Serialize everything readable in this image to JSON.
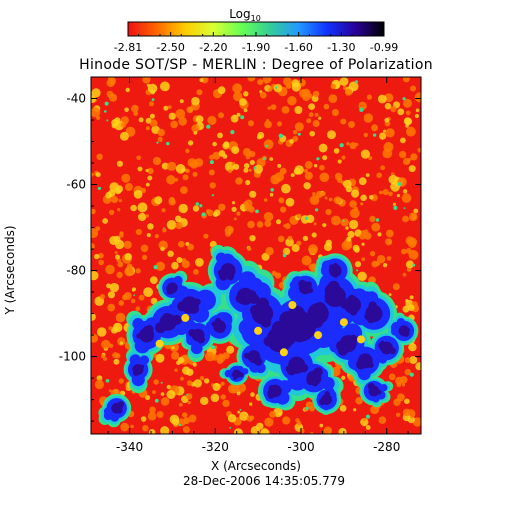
{
  "figure": {
    "title": "Hinode SOT/SP - MERLIN : Degree of Polarization",
    "timestamp": "28-Dec-2006 14:35:05.779",
    "colorbar": {
      "label_base": "Log",
      "label_sub": "10",
      "ticks": [
        "-2.81",
        "-2.50",
        "-2.20",
        "-1.90",
        "-1.60",
        "-1.30",
        "-0.99"
      ],
      "stops": [
        "#ee1111",
        "#ff6600",
        "#ffcc00",
        "#d9ff33",
        "#66ff55",
        "#33cc99",
        "#2299ff",
        "#1133ff",
        "#2a0099",
        "#000000"
      ]
    },
    "x_axis": {
      "label": "X (Arcseconds)",
      "ticks": [
        "-340",
        "-320",
        "-300",
        "-280"
      ],
      "range": [
        -349,
        -272
      ]
    },
    "y_axis": {
      "label": "Y (Arcseconds)",
      "ticks": [
        "-40",
        "-60",
        "-80",
        "-100"
      ],
      "range": [
        -118,
        -35
      ]
    },
    "palette": {
      "background": "#ee1a10",
      "speckle_orange": "#ff7a00",
      "speckle_yellow": "#ffd21a",
      "green": "#36e08a",
      "cyan": "#20c8d8",
      "blue": "#1a2cff",
      "indigo": "#2b0a99"
    }
  }
}
